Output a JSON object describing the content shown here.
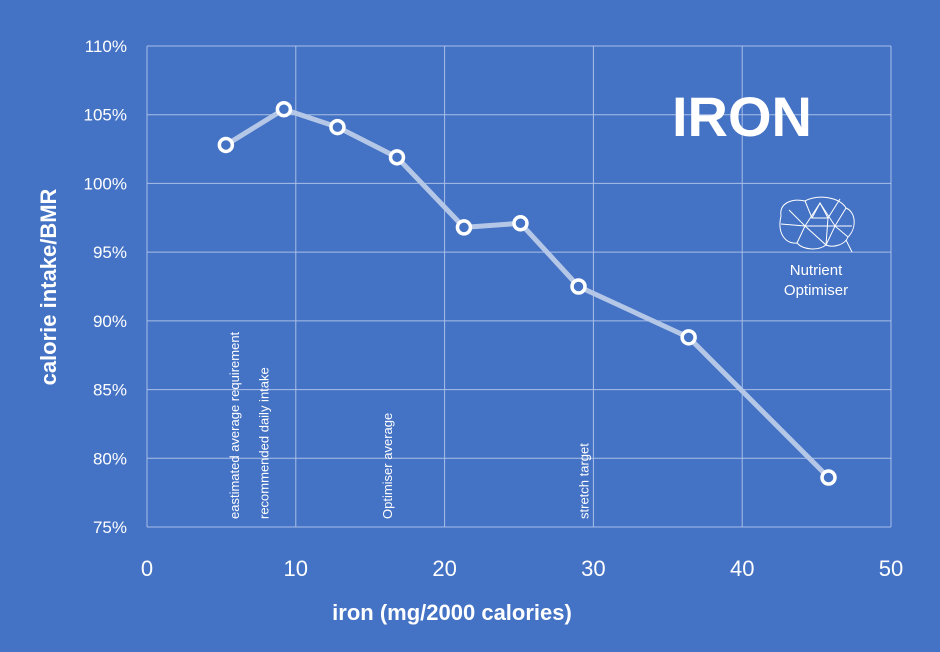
{
  "chart_data": {
    "type": "line",
    "title": "IRON",
    "xlabel": "iron (mg/2000 calories)",
    "ylabel": "calorie intake/BMR",
    "xlim": [
      0,
      50
    ],
    "ylim": [
      75,
      110
    ],
    "xticks": [
      0,
      10,
      20,
      30,
      40,
      50
    ],
    "yticks": [
      75,
      80,
      85,
      90,
      95,
      100,
      105,
      110
    ],
    "ytick_labels": [
      "75%",
      "80%",
      "85%",
      "90%",
      "95%",
      "100%",
      "105%",
      "110%"
    ],
    "grid": true,
    "series": [
      {
        "x": [
          5.3,
          9.2,
          12.8,
          16.8,
          21.3,
          25.1,
          29.0,
          36.4,
          45.8
        ],
        "y": [
          102.8,
          105.4,
          104.1,
          101.9,
          96.8,
          97.1,
          92.5,
          88.8,
          78.6
        ]
      }
    ],
    "reference_lines": [
      {
        "x": 5.9,
        "label": "eastimated average requirement"
      },
      {
        "x": 7.9,
        "label": "recommended daily intake"
      },
      {
        "x": 16.2,
        "label": "Optimiser average"
      },
      {
        "x": 29.4,
        "label": "stretch target"
      }
    ]
  },
  "logo": {
    "line1": "Nutrient",
    "line2": "Optimiser",
    "icon": "brain-icon"
  },
  "colors": {
    "background": "#4472C4",
    "line": "#B4C7E7",
    "grid": "#A9BFE8",
    "text": "#FFFFFF"
  }
}
